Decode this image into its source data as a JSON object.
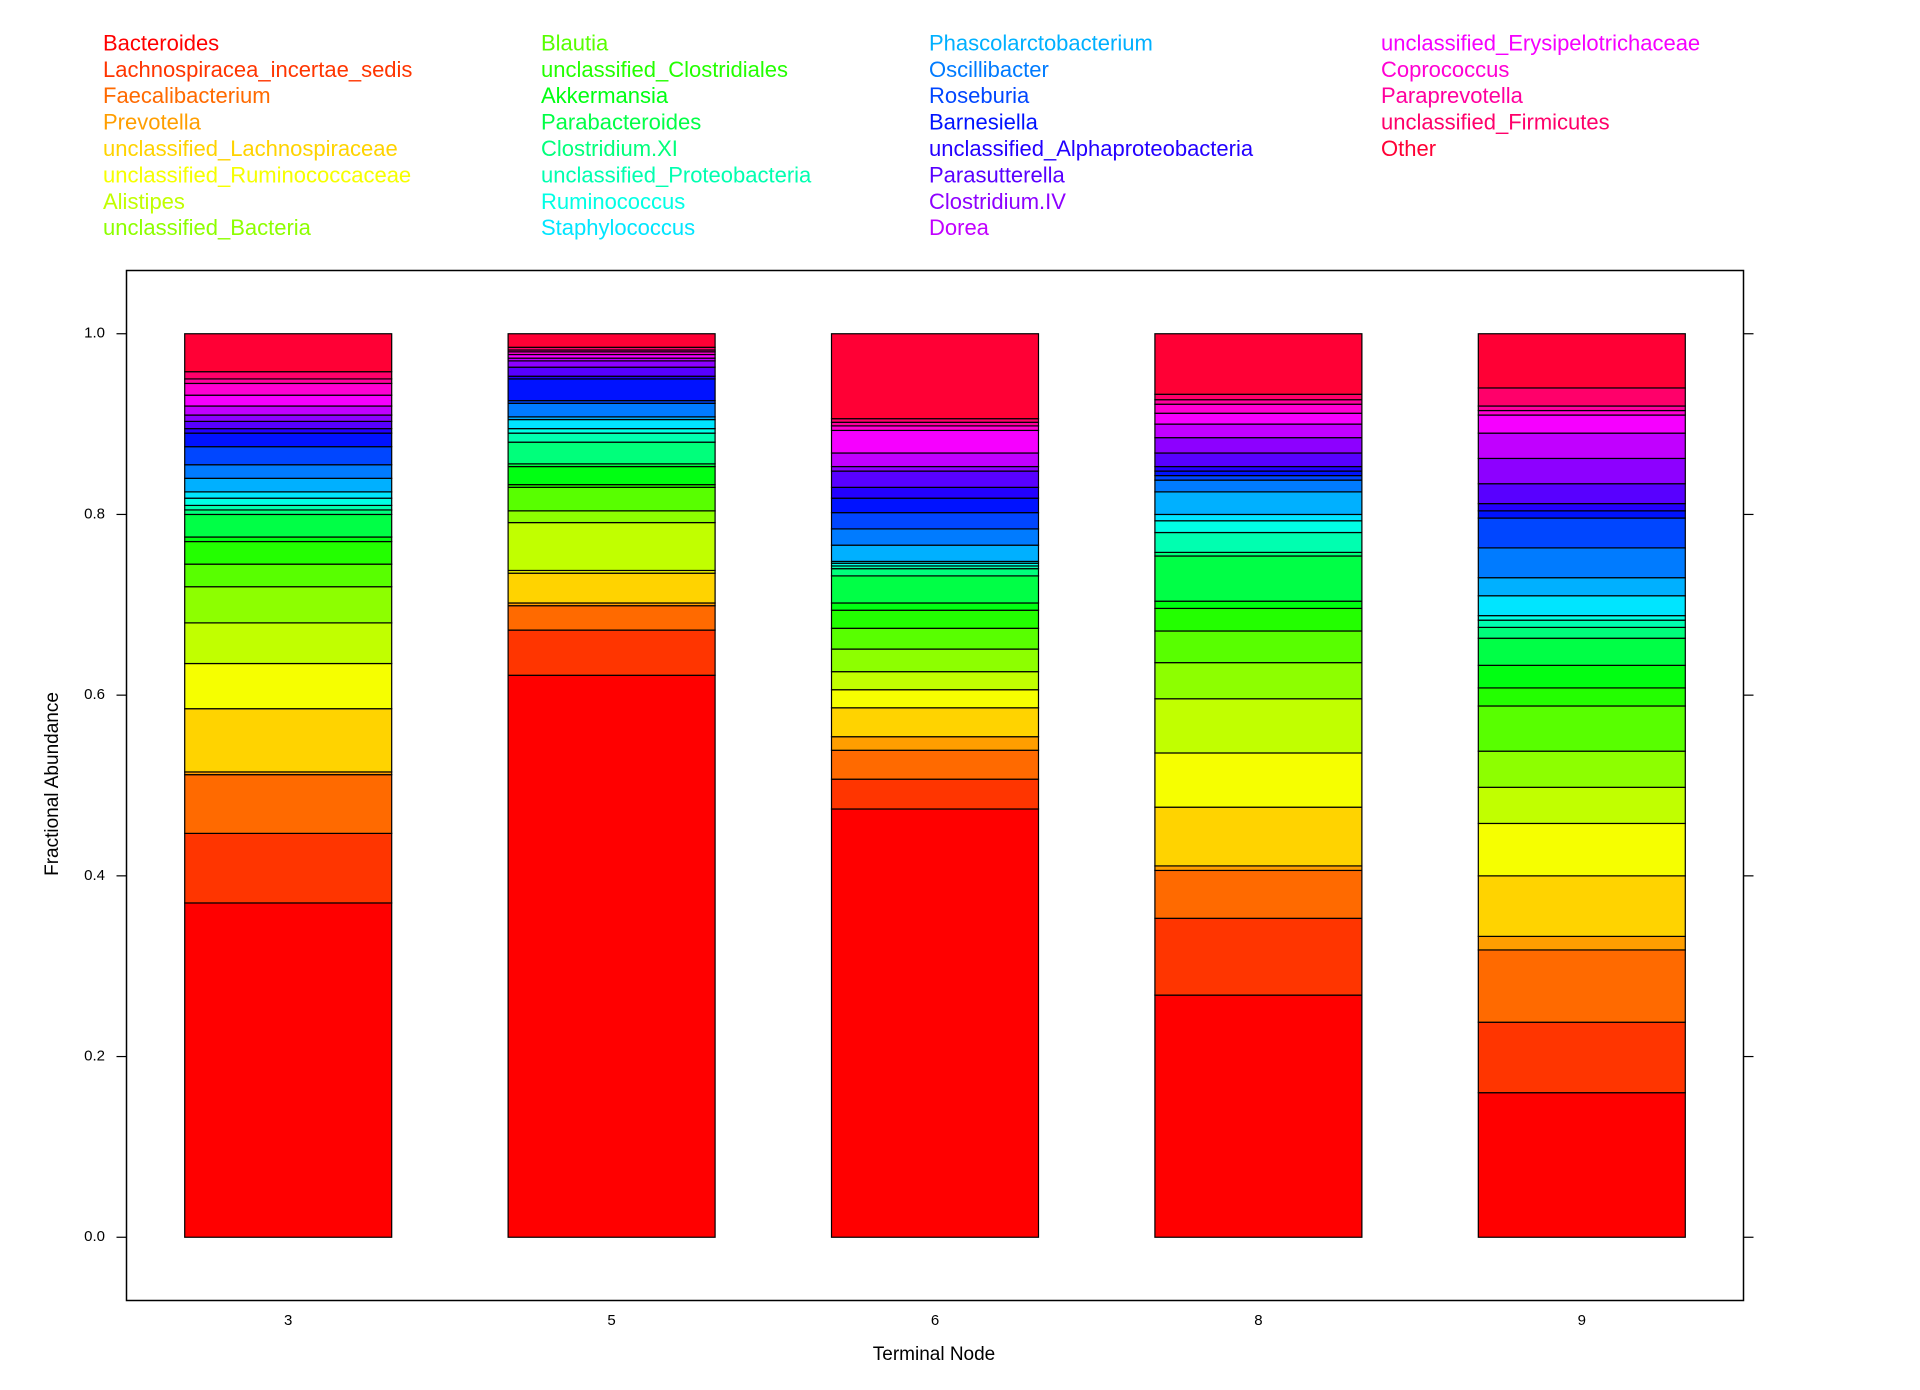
{
  "chart_data": {
    "type": "stacked_bar",
    "x_label": "Terminal Node",
    "y_label": "Fractional Abundance",
    "categories": [
      "3",
      "5",
      "6",
      "8",
      "9"
    ],
    "ylim": [
      -0.07,
      1.07
    ],
    "yticks": [
      {
        "value": 0,
        "label": "0.0"
      },
      {
        "value": 0.2,
        "label": "0.2"
      },
      {
        "value": 0.4,
        "label": "0.4"
      },
      {
        "value": 0.6,
        "label": "0.6"
      },
      {
        "value": 0.8,
        "label": "0.8"
      },
      {
        "value": 1,
        "label": "1.0"
      }
    ],
    "series": [
      {
        "name": "Bacteroides",
        "color": "#FF0000",
        "values": [
          0.37,
          0.622,
          0.474,
          0.268,
          0.16
        ]
      },
      {
        "name": "Lachnospiracea_incertae_sedis",
        "color": "#FF3500",
        "values": [
          0.077,
          0.05,
          0.033,
          0.085,
          0.078
        ]
      },
      {
        "name": "Faecalibacterium",
        "color": "#FF6A00",
        "values": [
          0.065,
          0.027,
          0.032,
          0.053,
          0.08
        ]
      },
      {
        "name": "Prevotella",
        "color": "#FF9E00",
        "values": [
          0.003,
          0.003,
          0.015,
          0.005,
          0.015
        ]
      },
      {
        "name": "unclassified_Lachnospiraceae",
        "color": "#FFD300",
        "values": [
          0.07,
          0.033,
          0.032,
          0.065,
          0.067
        ]
      },
      {
        "name": "unclassified_Ruminococcaceae",
        "color": "#F6FF00",
        "values": [
          0.05,
          0.003,
          0.02,
          0.06,
          0.058
        ]
      },
      {
        "name": "Alistipes",
        "color": "#C1FF00",
        "values": [
          0.045,
          0.053,
          0.02,
          0.06,
          0.04
        ]
      },
      {
        "name": "unclassified_Bacteria",
        "color": "#8DFF00",
        "values": [
          0.04,
          0.013,
          0.025,
          0.04,
          0.04
        ]
      },
      {
        "name": "Blautia",
        "color": "#58FF00",
        "values": [
          0.025,
          0.026,
          0.023,
          0.035,
          0.05
        ]
      },
      {
        "name": "unclassified_Clostridiales",
        "color": "#23FF00",
        "values": [
          0.025,
          0.003,
          0.02,
          0.025,
          0.02
        ]
      },
      {
        "name": "Akkermansia",
        "color": "#00FF12",
        "values": [
          0.005,
          0.02,
          0.008,
          0.008,
          0.025
        ]
      },
      {
        "name": "Parabacteroides",
        "color": "#00FF46",
        "values": [
          0.025,
          0.003,
          0.03,
          0.05,
          0.03
        ]
      },
      {
        "name": "Clostridium.XI",
        "color": "#00FF7B",
        "values": [
          0.005,
          0.024,
          0.008,
          0.004,
          0.012
        ]
      },
      {
        "name": "unclassified_Proteobacteria",
        "color": "#00FFB0",
        "values": [
          0.005,
          0.01,
          0.003,
          0.022,
          0.008
        ]
      },
      {
        "name": "Ruminococcus",
        "color": "#00FFE5",
        "values": [
          0.008,
          0.005,
          0.003,
          0.013,
          0.005
        ]
      },
      {
        "name": "Staphylococcus",
        "color": "#00E5FF",
        "values": [
          0.007,
          0.01,
          0.002,
          0.007,
          0.022
        ]
      },
      {
        "name": "Phascolarctobacterium",
        "color": "#00B0FF",
        "values": [
          0.015,
          0.003,
          0.018,
          0.025,
          0.02
        ]
      },
      {
        "name": "Oscillibacter",
        "color": "#007BFF",
        "values": [
          0.015,
          0.015,
          0.018,
          0.013,
          0.033
        ]
      },
      {
        "name": "Roseburia",
        "color": "#0046FF",
        "values": [
          0.02,
          0.003,
          0.018,
          0.005,
          0.033
        ]
      },
      {
        "name": "Barnesiella",
        "color": "#0012FF",
        "values": [
          0.015,
          0.024,
          0.016,
          0.005,
          0.008
        ]
      },
      {
        "name": "unclassified_Alphaproteobacteria",
        "color": "#2300FF",
        "values": [
          0.005,
          0.003,
          0.012,
          0.005,
          0.008
        ]
      },
      {
        "name": "Parasutterella",
        "color": "#5800FF",
        "values": [
          0.008,
          0.01,
          0.018,
          0.015,
          0.022
        ]
      },
      {
        "name": "Clostridium.IV",
        "color": "#8D00FF",
        "values": [
          0.007,
          0.007,
          0.005,
          0.017,
          0.028
        ]
      },
      {
        "name": "Dorea",
        "color": "#C100FF",
        "values": [
          0.01,
          0.003,
          0.015,
          0.015,
          0.028
        ]
      },
      {
        "name": "unclassified_Erysipelotrichaceae",
        "color": "#F600FF",
        "values": [
          0.012,
          0.004,
          0.025,
          0.012,
          0.02
        ]
      },
      {
        "name": "Coprococcus",
        "color": "#FF00D3",
        "values": [
          0.013,
          0.003,
          0.005,
          0.01,
          0.005
        ]
      },
      {
        "name": "Paraprevotella",
        "color": "#FF009E",
        "values": [
          0.005,
          0.002,
          0.004,
          0.005,
          0.005
        ]
      },
      {
        "name": "unclassified_Firmicutes",
        "color": "#FF006A",
        "values": [
          0.008,
          0.003,
          0.004,
          0.006,
          0.02
        ]
      },
      {
        "name": "Other",
        "color": "#FF0035",
        "values": [
          0.042,
          0.015,
          0.094,
          0.067,
          0.06
        ]
      }
    ]
  }
}
